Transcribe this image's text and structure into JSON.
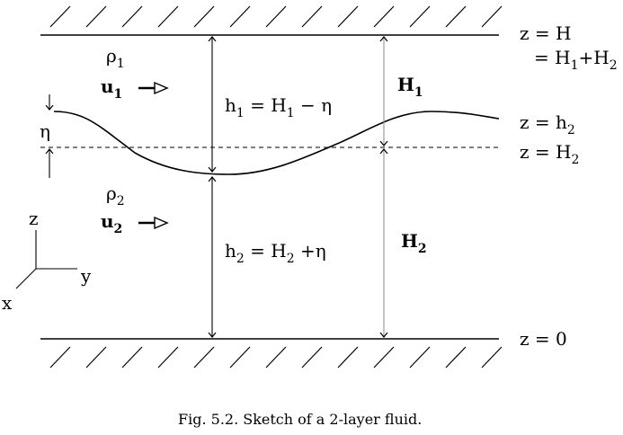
{
  "labels": {
    "rho1": "ρ",
    "rho1_sub": "1",
    "u1": "u",
    "u1_sub": "1",
    "rho2": "ρ",
    "rho2_sub": "2",
    "u2": "u",
    "u2_sub": "2",
    "eta": "η",
    "h1_eq": "h",
    "h1_sub": "1",
    "h1_rhs": " = H",
    "h1_rhs_sub": "1",
    "h1_tail": " − η",
    "h2_eq": "h",
    "h2_sub": "2",
    "h2_rhs": " = H",
    "h2_rhs_sub": "2",
    "h2_tail": " +η",
    "H1": "H",
    "H1_sub": "1",
    "H2": "H",
    "H2_sub": "2",
    "z_H": "z = H",
    "eq_H1H2_a": "= H",
    "eq_H1H2_sub1": "1",
    "eq_H1H2_b": "+H",
    "eq_H1H2_sub2": "2",
    "z_h2": "z = h",
    "z_h2_sub": "2",
    "z_H2": "z = H",
    "z_H2_sub": "2",
    "z_0": "z = 0",
    "axis_z": "z",
    "axis_y": "y",
    "axis_x": "x"
  },
  "caption": "Fig. 5.2. Sketch of a 2-layer fluid."
}
